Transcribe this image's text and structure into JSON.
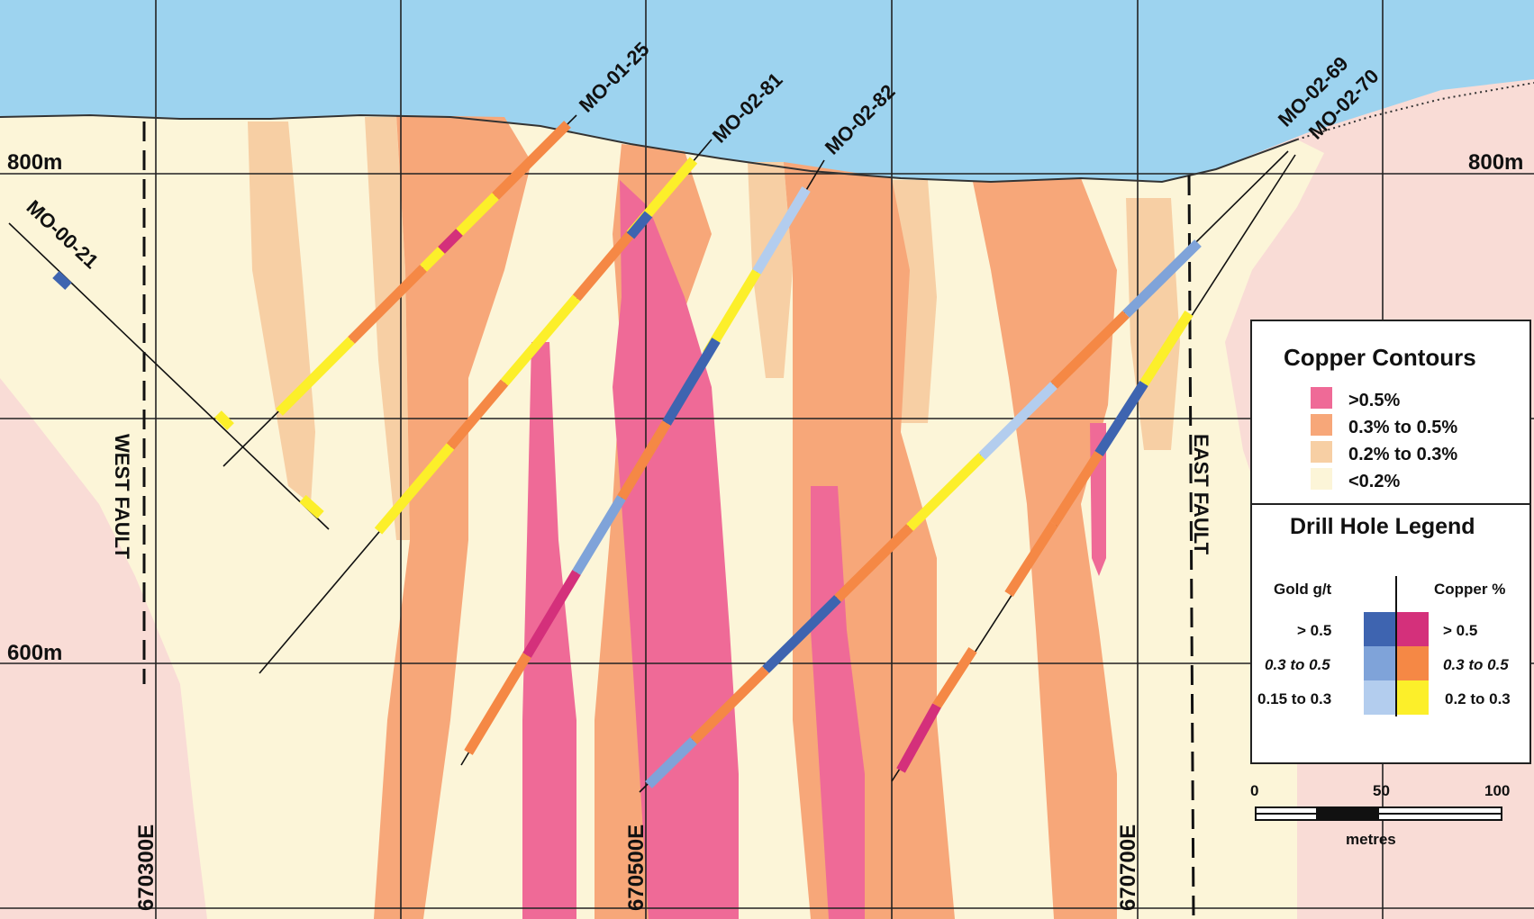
{
  "colors": {
    "sky": "#9dd3ef",
    "background_rock": "#f9dcd6",
    "cu_gt_0_5": "#ef6a97",
    "cu_0_3_to_0_5": "#f7a779",
    "cu_0_2_to_0_3": "#f7cfa4",
    "cu_lt_0_2": "#fcf5d8",
    "au_gt_0_5": "#3e64b0",
    "au_0_3_to_0_5": "#7fa3d9",
    "au_0_15_to_0_3": "#b3cdee",
    "cu_int_gt_0_5": "#d4307b",
    "cu_int_0_3_to_0_5": "#f58845",
    "cu_int_0_2_to_0_3": "#fcef2a"
  },
  "elevation_labels": {
    "left_800": "800m",
    "right_800": "800m",
    "left_600": "600m"
  },
  "easting_labels": [
    "670300E",
    "670500E",
    "670700E"
  ],
  "faults": {
    "west": "WEST FAULT",
    "east": "EAST FAULT"
  },
  "drill_holes": [
    {
      "id": "MO-00-21"
    },
    {
      "id": "MO-01-25"
    },
    {
      "id": "MO-02-81"
    },
    {
      "id": "MO-02-82"
    },
    {
      "id": "MO-02-69"
    },
    {
      "id": "MO-02-70"
    }
  ],
  "legend": {
    "contours_title": "Copper Contours",
    "contours": [
      {
        "label": ">0.5%",
        "color": "#ef6a97"
      },
      {
        "label": "0.3% to 0.5%",
        "color": "#f7a779"
      },
      {
        "label": "0.2% to 0.3%",
        "color": "#f7cfa4"
      },
      {
        "label": "<0.2%",
        "color": "#fcf5d8"
      }
    ],
    "drill_title": "Drill Hole Legend",
    "gold_header": "Gold g/t",
    "copper_header": "Copper %",
    "rows": [
      {
        "gold": "> 0.5",
        "copper": "> 0.5",
        "gold_color": "#3e64b0",
        "copper_color": "#d4307b"
      },
      {
        "gold": "0.3 to 0.5",
        "copper": "0.3 to 0.5",
        "gold_color": "#7fa3d9",
        "copper_color": "#f58845"
      },
      {
        "gold": "0.15 to 0.3",
        "copper": "0.2 to 0.3",
        "gold_color": "#b3cdee",
        "copper_color": "#fcef2a"
      }
    ]
  },
  "scale_bar": {
    "ticks": [
      "0",
      "50",
      "100"
    ],
    "unit": "metres"
  }
}
